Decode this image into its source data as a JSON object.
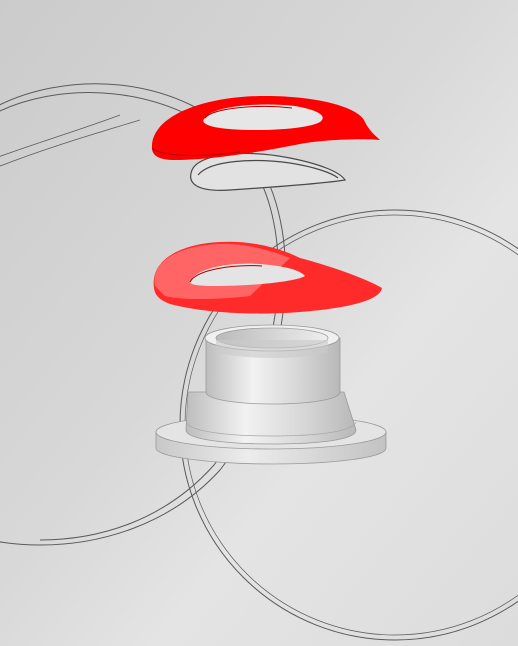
{
  "viewport": {
    "background_top": "#cfcfcf",
    "background_bottom": "#e6e6e6",
    "selection_color": "#ff0000",
    "wire_color": "#555555",
    "solid_color": "#d9d9d9"
  },
  "objects": [
    {
      "id": "upper-red-ring",
      "selected": true
    },
    {
      "id": "upper-wire-ring",
      "selected": false
    },
    {
      "id": "lower-red-ring",
      "selected": true
    },
    {
      "id": "cup-part",
      "selected": false
    },
    {
      "id": "left-wire-sphere",
      "selected": false
    },
    {
      "id": "right-wire-sphere",
      "selected": false
    }
  ]
}
